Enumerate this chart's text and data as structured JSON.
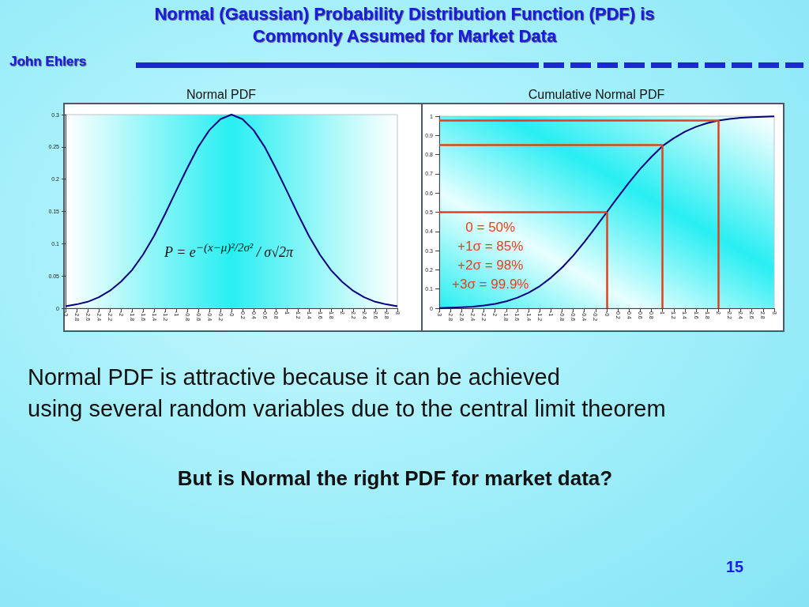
{
  "chart_data": [
    {
      "type": "other",
      "title": "Normal (Gaussian) Probability Distribution Function (PDF) is Commonly Assumed for Market Data",
      "annotations": [
        "John Ehlers"
      ]
    },
    {
      "type": "line",
      "title": "Normal PDF",
      "color": "#000080",
      "x": [
        -3,
        -2.8,
        -2.6,
        -2.4,
        -2.2,
        -2,
        -1.8,
        -1.6,
        -1.4,
        -1.2,
        -1,
        -0.8,
        -0.6,
        -0.4,
        -0.2,
        0,
        0.2,
        0.4,
        0.6,
        0.8,
        1,
        1.2,
        1.4,
        1.6,
        1.8,
        2,
        2.2,
        2.4,
        2.6,
        2.8,
        3
      ],
      "values": [
        0.003,
        0.006,
        0.01,
        0.017,
        0.027,
        0.041,
        0.059,
        0.083,
        0.112,
        0.146,
        0.182,
        0.217,
        0.25,
        0.276,
        0.293,
        0.3,
        0.293,
        0.276,
        0.25,
        0.217,
        0.182,
        0.146,
        0.112,
        0.083,
        0.059,
        0.041,
        0.027,
        0.017,
        0.01,
        0.006,
        0.003
      ],
      "xlim": [
        -3,
        3
      ],
      "xticks": [
        -3,
        -2.8,
        -2.6,
        -2.4,
        -2.2,
        -2,
        -1.8,
        -1.6,
        -1.4,
        -1.2,
        -1,
        -0.8,
        -0.6,
        -0.4,
        -0.2,
        {
          "value": 0,
          "label": "-0"
        },
        0.2,
        0.4,
        0.6,
        0.8,
        1,
        1.2,
        1.4,
        1.6,
        1.8,
        2,
        2.2,
        2.4,
        2.6,
        2.8,
        3
      ],
      "ylim": [
        0,
        0.3
      ],
      "yticks": [
        0,
        0.05,
        0.1,
        0.15,
        0.2,
        0.25,
        0.3
      ],
      "annotations": [
        "P = e$^{−(x−μ)²/2σ²}$ / σ√2π"
      ]
    },
    {
      "type": "line",
      "title": "Cumulative Normal PDF",
      "color": "#000080",
      "x": [
        -3,
        -2.8,
        -2.6,
        -2.4,
        -2.2,
        -2,
        -1.8,
        -1.6,
        -1.4,
        -1.2,
        -1,
        -0.8,
        -0.6,
        -0.4,
        -0.2,
        0,
        0.2,
        0.4,
        0.6,
        0.8,
        1,
        1.2,
        1.4,
        1.6,
        1.8,
        2,
        2.2,
        2.4,
        2.6,
        2.8,
        3
      ],
      "values": [
        0.001,
        0.003,
        0.005,
        0.008,
        0.014,
        0.023,
        0.036,
        0.055,
        0.081,
        0.115,
        0.159,
        0.212,
        0.274,
        0.345,
        0.421,
        0.5,
        0.579,
        0.655,
        0.726,
        0.788,
        0.845,
        0.885,
        0.919,
        0.945,
        0.964,
        0.977,
        0.986,
        0.992,
        0.995,
        0.997,
        0.999
      ],
      "xlim": [
        -3,
        3
      ],
      "xticks": [
        -3,
        -2.8,
        -2.6,
        -2.4,
        -2.2,
        -2,
        -1.8,
        -1.6,
        -1.4,
        -1.2,
        -1,
        -0.8,
        -0.6,
        -0.4,
        -0.2,
        {
          "value": 0,
          "label": "-0"
        },
        0.2,
        0.4,
        0.6,
        0.8,
        1,
        1.2,
        1.4,
        1.6,
        1.8,
        2,
        2.2,
        2.4,
        2.6,
        2.8,
        3
      ],
      "ylim": [
        0,
        1
      ],
      "yticks": [
        0,
        0.1,
        0.2,
        0.3,
        0.4,
        0.5,
        0.6,
        0.7,
        0.8,
        0.9,
        1
      ],
      "ref_lines": [
        {
          "axis": "x",
          "value": 0,
          "color": "#e2401a"
        },
        {
          "axis": "y",
          "value": 0.5,
          "color": "#e2401a"
        },
        {
          "axis": "x",
          "value": 1,
          "color": "#e2401a"
        },
        {
          "axis": "y",
          "value": 0.85,
          "color": "#e2401a"
        },
        {
          "axis": "x",
          "value": 2,
          "color": "#e2401a"
        },
        {
          "axis": "y",
          "value": 0.98,
          "color": "#e2401a"
        }
      ],
      "annotations": [
        "0 = 50%",
        "+1σ = 85%",
        "+2σ = 98%",
        "+3σ = 99.9%"
      ]
    },
    {
      "type": "other",
      "annotations": [
        "Normal PDF is attractive because it can be achieved",
        "using several random variables due to the central limit theorem",
        "But is Normal the right PDF for market data?",
        "15"
      ]
    }
  ]
}
